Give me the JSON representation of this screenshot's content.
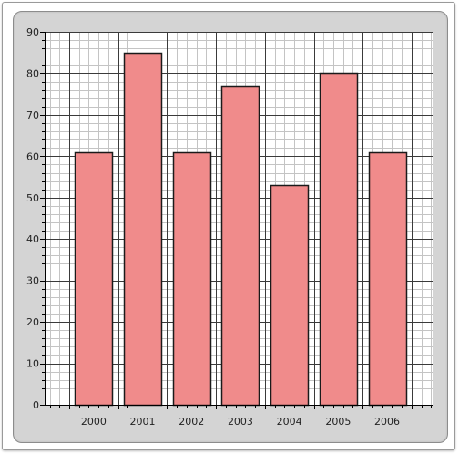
{
  "chart_data": {
    "type": "bar",
    "categories": [
      "2000",
      "2001",
      "2002",
      "2003",
      "2004",
      "2005",
      "2006"
    ],
    "values": [
      61,
      85,
      61,
      77,
      53,
      80,
      61
    ],
    "title": "",
    "xlabel": "",
    "ylabel": "",
    "ylim": [
      0,
      90
    ],
    "y_ticks": [
      "0",
      "10",
      "20",
      "30",
      "40",
      "50",
      "60",
      "70",
      "80",
      "90"
    ],
    "grid": true,
    "minor_grid": true,
    "legend": "none"
  },
  "colors": {
    "bar_fill": "#f08b8b",
    "bar_stroke": "#1a1a1a",
    "plot_background": "#ffffff",
    "panel_background": "#d4d4d4",
    "major_grid": "#3a3a3a",
    "minor_grid": "#c4c4c4"
  }
}
